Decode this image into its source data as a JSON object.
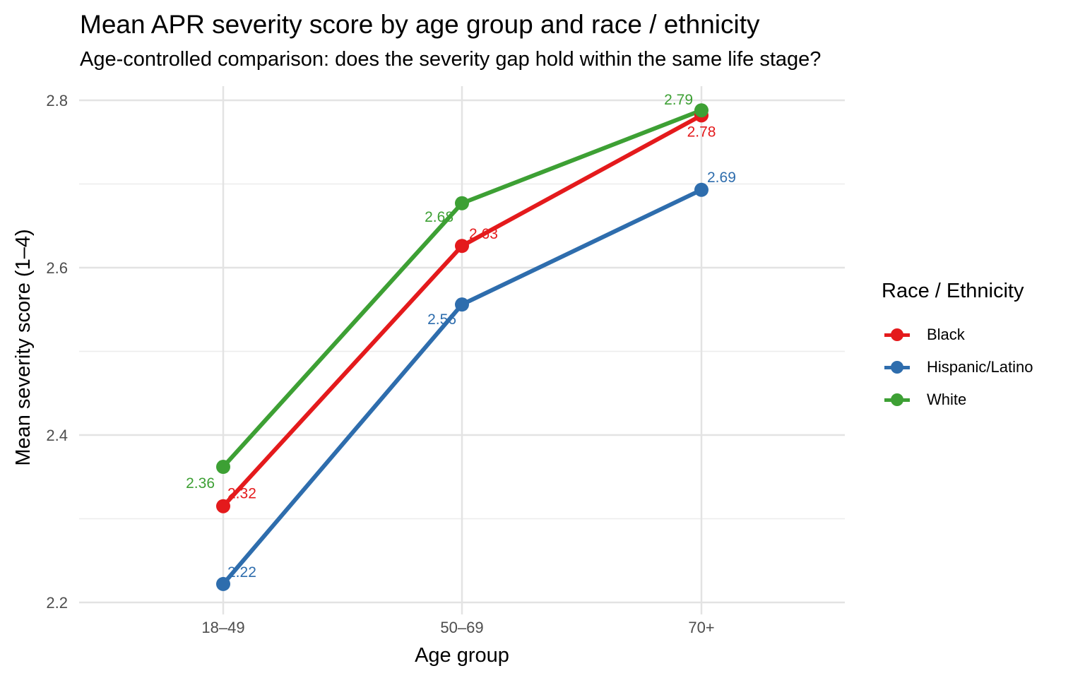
{
  "chart_data": {
    "type": "line",
    "title": "Mean APR severity score by age group and race / ethnicity",
    "subtitle": "Age-controlled comparison: does the severity gap hold within the same life stage?",
    "xlabel": "Age group",
    "ylabel": "Mean severity score (1–4)",
    "categories": [
      "18–49",
      "50–69",
      "70+"
    ],
    "ylim": [
      2.2,
      2.8
    ],
    "yticks": [
      "2.2",
      "2.4",
      "2.6",
      "2.8"
    ],
    "legend_title": "Race / Ethnicity",
    "legend_position": "right",
    "grid": true,
    "series": [
      {
        "name": "Black",
        "color": "#E41A1C",
        "values": [
          2.315,
          2.626,
          2.782
        ],
        "labels": [
          "2.32",
          "2.63",
          "2.78"
        ]
      },
      {
        "name": "Hispanic/Latino",
        "color": "#2E6DAD",
        "values": [
          2.222,
          2.556,
          2.693
        ],
        "labels": [
          "2.22",
          "2.56",
          "2.69"
        ]
      },
      {
        "name": "White",
        "color": "#3DA034",
        "values": [
          2.362,
          2.677,
          2.788
        ],
        "labels": [
          "2.36",
          "2.68",
          "2.79"
        ]
      }
    ]
  }
}
